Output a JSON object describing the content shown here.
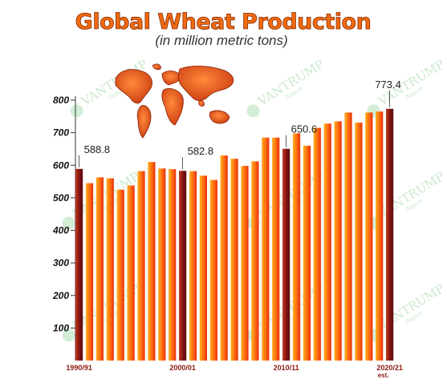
{
  "watermark": {
    "text": "VANTRUMP",
    "sub": "Report"
  },
  "chart_data": {
    "type": "bar",
    "title": "Global Wheat Production",
    "subtitle": "(in million metric tons)",
    "xlabel": "",
    "ylabel": "",
    "ylim": [
      0,
      800
    ],
    "yticks": [
      100,
      200,
      300,
      400,
      500,
      600,
      700,
      800
    ],
    "grid": false,
    "legend": "none",
    "x_tick_labels": [
      {
        "index": 0,
        "text": "1990/91"
      },
      {
        "index": 10,
        "text": "2000/01"
      },
      {
        "index": 20,
        "text": "2010/11"
      },
      {
        "index": 30,
        "text": "2020/21",
        "note": "est."
      }
    ],
    "data_labels": [
      {
        "index": 0,
        "text": "588.8"
      },
      {
        "index": 10,
        "text": "582.8"
      },
      {
        "index": 20,
        "text": "650.6"
      },
      {
        "index": 30,
        "text": "773.4"
      }
    ],
    "highlight_indices": [
      0,
      10,
      20,
      30
    ],
    "values": [
      588.8,
      545,
      563,
      560,
      525,
      538,
      582,
      610,
      590,
      588,
      582.8,
      582,
      568,
      555,
      630,
      620,
      598,
      612,
      685,
      685,
      650.6,
      698,
      660,
      715,
      728,
      735,
      762,
      731,
      762,
      765,
      773.4
    ],
    "colors": {
      "bar_light": "#ffb020",
      "bar_mid": "#ff6a10",
      "bar_dark": "#e8300c",
      "highlight_light": "#c23a22",
      "highlight_dark": "#5a0c0c",
      "map": "#e8501a",
      "map_dark": "#8a2008"
    }
  }
}
